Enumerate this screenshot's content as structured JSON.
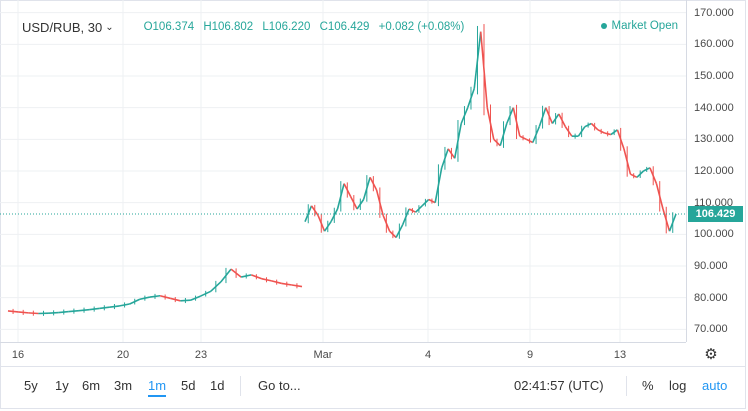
{
  "header": {
    "symbol": "USD/RUB, 30",
    "open": "O106.374",
    "high": "H106.802",
    "low": "L106.220",
    "close": "C106.429",
    "change": "+0.082 (+0.08%)",
    "market_status": "Market Open"
  },
  "price_axis": {
    "labels": [
      "170.000",
      "160.000",
      "150.000",
      "140.000",
      "130.000",
      "120.000",
      "110.000",
      "100.000",
      "90.000",
      "80.000",
      "70.000"
    ],
    "current_price": "106.429"
  },
  "time_axis": {
    "labels": [
      "16",
      "20",
      "23",
      "Mar",
      "4",
      "9",
      "13"
    ]
  },
  "bottom_bar": {
    "ranges": [
      "5y",
      "1y",
      "6m",
      "3m",
      "1m",
      "5d",
      "1d"
    ],
    "active_range": "1m",
    "goto_label": "Go to...",
    "clock": "02:41:57 (UTC)",
    "percent_label": "%",
    "log_label": "log",
    "auto_label": "auto"
  },
  "colors": {
    "up": "#26a69a",
    "down": "#ef5350",
    "accent": "#2196f3"
  },
  "chart_data": {
    "type": "line",
    "title": "",
    "ylim": [
      66,
      174
    ],
    "y_ticks": [
      170,
      160,
      150,
      140,
      130,
      120,
      110,
      100,
      90,
      80,
      70
    ],
    "x_labels": [
      "16",
      "20",
      "23",
      "Mar",
      "4",
      "9",
      "13"
    ],
    "current_price": 106.429,
    "series": [
      {
        "values": [
          75.8,
          75.5,
          75.2,
          75.0,
          75.1,
          75.3,
          75.6,
          75.9,
          76.2,
          76.6,
          77.0,
          77.4,
          78.0,
          79.5,
          80.2,
          80.6,
          79.8,
          79.0,
          79.2,
          80.5,
          82.0,
          85.0,
          89.0,
          86.5,
          87.2,
          86.0,
          85.3,
          84.5,
          84.0,
          83.5,
          104.0,
          109.0,
          106.0,
          101.0,
          104.0,
          108.0,
          116.0,
          112.0,
          108.0,
          111.0,
          118.0,
          114.0,
          106.0,
          101.0,
          99.0,
          103.0,
          108.0,
          107.0,
          109.0,
          111.0,
          110.0,
          121.0,
          127.0,
          124.0,
          135.0,
          140.0,
          146.0,
          164.0,
          140.0,
          130.0,
          128.0,
          135.0,
          140.0,
          131.0,
          130.0,
          129.0,
          134.0,
          140.0,
          135.0,
          138.0,
          134.0,
          131.0,
          131.0,
          134.0,
          135.0,
          133.0,
          132.0,
          131.5,
          133.0,
          127.0,
          119.0,
          118.0,
          120.0,
          121.0,
          116.0,
          108.0,
          101.0,
          106.429
        ]
      }
    ]
  }
}
